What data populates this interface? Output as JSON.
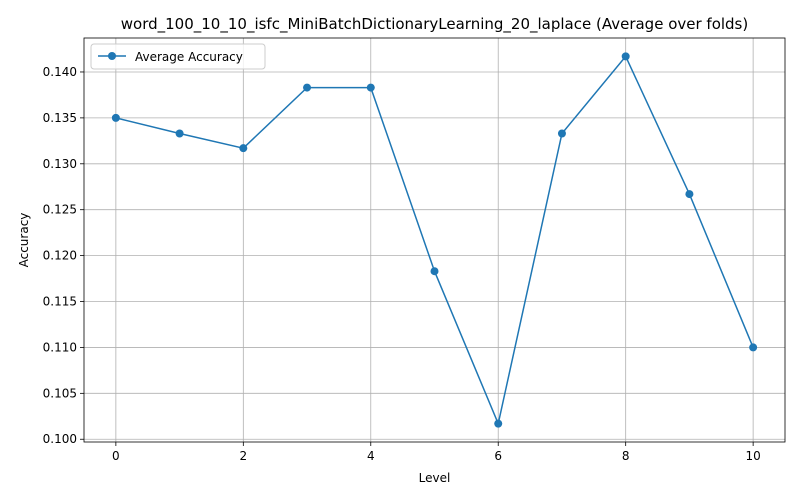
{
  "chart_data": {
    "type": "line",
    "title": "word_100_10_10_isfc_MiniBatchDictionaryLearning_20_laplace (Average over folds)",
    "xlabel": "Level",
    "ylabel": "Accuracy",
    "x": [
      0,
      1,
      2,
      3,
      4,
      5,
      6,
      7,
      8,
      9,
      10
    ],
    "series": [
      {
        "name": "Average Accuracy",
        "color": "#1f77b4",
        "marker": "circle",
        "values": [
          0.135,
          0.1333,
          0.1317,
          0.1383,
          0.1383,
          0.1183,
          0.1017,
          0.1333,
          0.1417,
          0.1267,
          0.11
        ]
      }
    ],
    "xticks": [
      "0",
      "2",
      "4",
      "6",
      "8",
      "10"
    ],
    "yticks": [
      "0.100",
      "0.105",
      "0.110",
      "0.115",
      "0.120",
      "0.125",
      "0.130",
      "0.135",
      "0.140"
    ],
    "xlim": [
      -0.5,
      10.5
    ],
    "ylim": [
      0.0997,
      0.1437
    ],
    "grid": true,
    "legend_position": "top-left"
  }
}
